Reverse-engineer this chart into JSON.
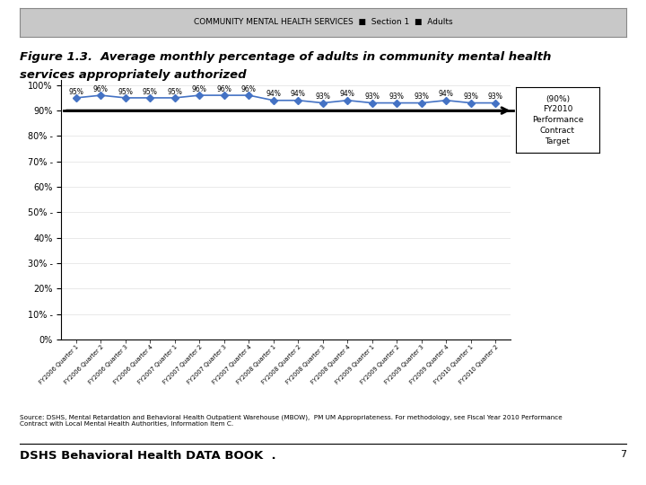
{
  "title_line1": "Figure 1.3.  Average monthly percentage of adults in community mental health",
  "title_line2": "services appropriately authorized",
  "header_text": "COMMUNITY MENTAL HEALTH SERVICES  ■  Section 1  ■  Adults",
  "source_text": "Source: DSHS, Mental Retardation and Behavioral Health Outpatient Warehouse (MBOW),  PM UM Appropriateness. For methodology, see Fiscal Year 2010 Performance\nContract with Local Mental Health Authorities, Information Item C.",
  "footer_text": "DSHS Behavioral Health DATA BOOK  .",
  "page_number": "7",
  "categories": [
    "FY2006 Quarter 1",
    "FY2006 Quarter 2",
    "FY2006 Quarter 3",
    "FY2006 Quarter 4",
    "FY2007 Quarter 1",
    "FY2007 Quarter 2",
    "FY2007 Quarter 3",
    "FY2007 Quarter 4",
    "FY2008 Quarter 1",
    "FY2008 Quarter 2",
    "FY2008 Quarter 3",
    "FY2008 Quarter 4",
    "FY2009 Quarter 1",
    "FY2009 Quarter 2",
    "FY2009 Quarter 3",
    "FY2009 Quarter 4",
    "FY2010 Quarter 1",
    "FY2010 Quarter 2"
  ],
  "values": [
    95,
    96,
    95,
    95,
    95,
    96,
    96,
    96,
    94,
    94,
    93,
    94,
    93,
    93,
    93,
    94,
    93,
    93
  ],
  "line_color": "#4472C4",
  "marker": "D",
  "marker_size": 4,
  "target_value": 90,
  "target_label": "(90%)\nFY2010\nPerformance\nContract\nTarget",
  "ylim": [
    0,
    102
  ],
  "yticks": [
    0,
    10,
    20,
    30,
    40,
    50,
    60,
    70,
    80,
    90,
    100
  ],
  "ytick_labels": [
    "0%",
    "10% -",
    "20%",
    "30% -",
    "40%",
    "50% -",
    "60%",
    "70% -",
    "80% -",
    "90%",
    "100%"
  ],
  "background_color": "#ffffff",
  "header_bg_color": "#c8c8c8",
  "grid_color": "#e0e0e0",
  "title_fontsize": 9.5,
  "label_fontsize": 7,
  "data_label_fontsize": 5.5
}
